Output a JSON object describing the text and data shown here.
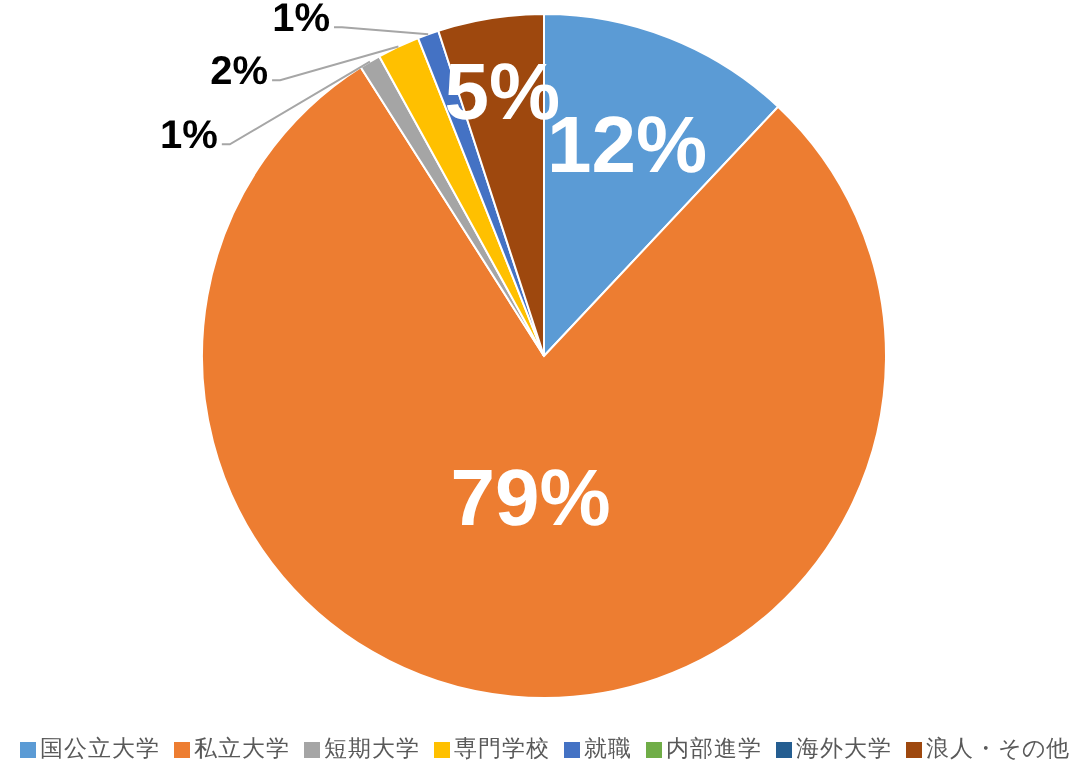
{
  "chart_data": {
    "type": "pie",
    "categories": [
      "国公立大学",
      "私立大学",
      "短期大学",
      "専門学校",
      "就職",
      "内部進学",
      "海外大学",
      "浪人・その他"
    ],
    "values": [
      12,
      79,
      1,
      2,
      1,
      0,
      0,
      5
    ],
    "colors": [
      "#5b9bd5",
      "#ed7d31",
      "#a5a5a5",
      "#ffc000",
      "#4472c4",
      "#70ad47",
      "#255e91",
      "#9e480e"
    ],
    "value_labels": [
      "12%",
      "79%",
      "1%",
      "2%",
      "1%",
      null,
      null,
      "5%"
    ],
    "legend": "bottom"
  }
}
